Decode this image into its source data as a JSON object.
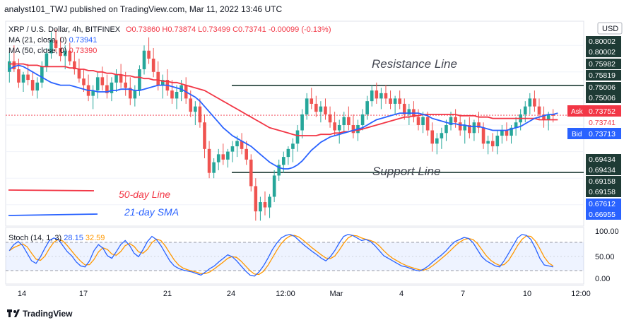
{
  "header": {
    "published_text": "analyst101_TWJ published on TradingView.com, Mar 11, 2022 13:46 UTC"
  },
  "symbol_bar": {
    "symbol": "XRP / U.S. Dollar, 4h, BITFINEX",
    "ohlc": "O0.73860 H0.73874 L0.73499 C0.73741 -0.00099 (-0.13%)"
  },
  "indicators": {
    "ma21": {
      "label": "MA (21, close, 0)",
      "value": "0.73941",
      "color": "#2962ff"
    },
    "ma50": {
      "label": "MA (50, close, 0)",
      "value": "0.73390",
      "color": "#f23645"
    }
  },
  "currency_badge": "USD",
  "annotations": {
    "resistance": "Resistance Line",
    "support": "Support Line",
    "legend_50": "50-day Line",
    "legend_21": "21-day SMA"
  },
  "price_axis_labels": [
    "0.80002",
    "0.80002",
    "0.75982",
    "0.75819",
    "0.75006",
    "0.75006",
    "0.73752",
    "0.73741",
    "0.73713",
    "0.69434",
    "0.69434",
    "0.69158",
    "0.69158",
    "0.67612",
    "0.66955"
  ],
  "price_badges": {
    "ask_label": "Ask",
    "ask_value": "0.73752",
    "ask_color": "#f23645",
    "last_value": "0.73741",
    "bid_label": "Bid",
    "bid_value": "0.73713",
    "bid_color": "#2962ff"
  },
  "stoch": {
    "label": "Stoch (14, 1, 3)",
    "k_value": "28.15",
    "d_value": "32.59",
    "k_color": "#2962ff",
    "d_color": "#ff9800",
    "axis_labels": [
      "100.00",
      "50.00",
      "0.00"
    ]
  },
  "time_axis": [
    "14",
    "17",
    "21",
    "24",
    "12:00",
    "Mar",
    "4",
    "7",
    "10",
    "12:00"
  ],
  "footer": {
    "logo_text": "TradingView"
  },
  "chart_data": {
    "type": "candlestick",
    "title": "XRP / U.S. Dollar, 4h, BITFINEX",
    "price_range": [
      0.655,
      0.805
    ],
    "resistance_level": 0.75982,
    "support_level": 0.69434,
    "candles": [
      [
        0.77,
        0.785,
        0.762,
        0.778
      ],
      [
        0.778,
        0.79,
        0.77,
        0.772
      ],
      [
        0.772,
        0.78,
        0.758,
        0.762
      ],
      [
        0.762,
        0.77,
        0.755,
        0.768
      ],
      [
        0.768,
        0.776,
        0.76,
        0.764
      ],
      [
        0.764,
        0.77,
        0.752,
        0.756
      ],
      [
        0.756,
        0.766,
        0.75,
        0.762
      ],
      [
        0.762,
        0.778,
        0.758,
        0.774
      ],
      [
        0.774,
        0.788,
        0.77,
        0.784
      ],
      [
        0.784,
        0.8,
        0.78,
        0.794
      ],
      [
        0.794,
        0.802,
        0.785,
        0.788
      ],
      [
        0.788,
        0.796,
        0.778,
        0.782
      ],
      [
        0.782,
        0.79,
        0.772,
        0.786
      ],
      [
        0.786,
        0.792,
        0.775,
        0.778
      ],
      [
        0.778,
        0.785,
        0.768,
        0.772
      ],
      [
        0.772,
        0.78,
        0.762,
        0.765
      ],
      [
        0.765,
        0.772,
        0.755,
        0.76
      ],
      [
        0.76,
        0.768,
        0.748,
        0.752
      ],
      [
        0.752,
        0.76,
        0.742,
        0.756
      ],
      [
        0.756,
        0.77,
        0.75,
        0.766
      ],
      [
        0.766,
        0.774,
        0.756,
        0.76
      ],
      [
        0.76,
        0.768,
        0.75,
        0.754
      ],
      [
        0.754,
        0.766,
        0.748,
        0.762
      ],
      [
        0.762,
        0.772,
        0.755,
        0.768
      ],
      [
        0.768,
        0.776,
        0.758,
        0.762
      ],
      [
        0.762,
        0.77,
        0.752,
        0.758
      ],
      [
        0.758,
        0.766,
        0.745,
        0.75
      ],
      [
        0.75,
        0.76,
        0.744,
        0.756
      ],
      [
        0.756,
        0.775,
        0.752,
        0.772
      ],
      [
        0.772,
        0.79,
        0.768,
        0.786
      ],
      [
        0.786,
        0.796,
        0.776,
        0.78
      ],
      [
        0.78,
        0.788,
        0.766,
        0.77
      ],
      [
        0.77,
        0.778,
        0.756,
        0.76
      ],
      [
        0.76,
        0.768,
        0.75,
        0.764
      ],
      [
        0.764,
        0.772,
        0.752,
        0.756
      ],
      [
        0.756,
        0.764,
        0.746,
        0.75
      ],
      [
        0.75,
        0.76,
        0.742,
        0.755
      ],
      [
        0.755,
        0.764,
        0.748,
        0.76
      ],
      [
        0.76,
        0.766,
        0.746,
        0.75
      ],
      [
        0.75,
        0.756,
        0.736,
        0.74
      ],
      [
        0.74,
        0.748,
        0.73,
        0.744
      ],
      [
        0.744,
        0.75,
        0.728,
        0.732
      ],
      [
        0.732,
        0.738,
        0.705,
        0.712
      ],
      [
        0.712,
        0.718,
        0.69,
        0.694
      ],
      [
        0.694,
        0.705,
        0.69,
        0.702
      ],
      [
        0.702,
        0.712,
        0.696,
        0.708
      ],
      [
        0.708,
        0.716,
        0.7,
        0.704
      ],
      [
        0.704,
        0.712,
        0.698,
        0.71
      ],
      [
        0.71,
        0.718,
        0.702,
        0.714
      ],
      [
        0.714,
        0.722,
        0.706,
        0.718
      ],
      [
        0.718,
        0.724,
        0.708,
        0.712
      ],
      [
        0.712,
        0.718,
        0.7,
        0.704
      ],
      [
        0.704,
        0.708,
        0.68,
        0.684
      ],
      [
        0.684,
        0.69,
        0.658,
        0.665
      ],
      [
        0.665,
        0.676,
        0.658,
        0.672
      ],
      [
        0.672,
        0.68,
        0.662,
        0.668
      ],
      [
        0.668,
        0.678,
        0.66,
        0.676
      ],
      [
        0.676,
        0.696,
        0.672,
        0.692
      ],
      [
        0.692,
        0.704,
        0.688,
        0.7
      ],
      [
        0.7,
        0.71,
        0.694,
        0.706
      ],
      [
        0.706,
        0.714,
        0.7,
        0.712
      ],
      [
        0.712,
        0.72,
        0.702,
        0.716
      ],
      [
        0.716,
        0.73,
        0.71,
        0.726
      ],
      [
        0.726,
        0.742,
        0.72,
        0.738
      ],
      [
        0.738,
        0.754,
        0.734,
        0.75
      ],
      [
        0.75,
        0.758,
        0.742,
        0.746
      ],
      [
        0.746,
        0.752,
        0.736,
        0.74
      ],
      [
        0.74,
        0.748,
        0.732,
        0.744
      ],
      [
        0.744,
        0.75,
        0.734,
        0.738
      ],
      [
        0.738,
        0.744,
        0.728,
        0.732
      ],
      [
        0.732,
        0.74,
        0.722,
        0.726
      ],
      [
        0.726,
        0.734,
        0.716,
        0.73
      ],
      [
        0.73,
        0.74,
        0.724,
        0.736
      ],
      [
        0.736,
        0.744,
        0.726,
        0.73
      ],
      [
        0.73,
        0.738,
        0.72,
        0.724
      ],
      [
        0.724,
        0.734,
        0.718,
        0.73
      ],
      [
        0.73,
        0.742,
        0.726,
        0.738
      ],
      [
        0.738,
        0.752,
        0.734,
        0.748
      ],
      [
        0.748,
        0.76,
        0.744,
        0.756
      ],
      [
        0.756,
        0.762,
        0.746,
        0.75
      ],
      [
        0.75,
        0.758,
        0.742,
        0.754
      ],
      [
        0.754,
        0.76,
        0.746,
        0.75
      ],
      [
        0.75,
        0.756,
        0.742,
        0.746
      ],
      [
        0.746,
        0.752,
        0.738,
        0.75
      ],
      [
        0.75,
        0.756,
        0.742,
        0.746
      ],
      [
        0.746,
        0.75,
        0.734,
        0.738
      ],
      [
        0.738,
        0.746,
        0.73,
        0.742
      ],
      [
        0.742,
        0.748,
        0.732,
        0.736
      ],
      [
        0.736,
        0.742,
        0.726,
        0.73
      ],
      [
        0.73,
        0.74,
        0.724,
        0.736
      ],
      [
        0.736,
        0.74,
        0.722,
        0.726
      ],
      [
        0.726,
        0.732,
        0.71,
        0.716
      ],
      [
        0.716,
        0.724,
        0.708,
        0.72
      ],
      [
        0.72,
        0.728,
        0.712,
        0.724
      ],
      [
        0.724,
        0.734,
        0.718,
        0.73
      ],
      [
        0.73,
        0.74,
        0.726,
        0.736
      ],
      [
        0.736,
        0.742,
        0.728,
        0.732
      ],
      [
        0.732,
        0.738,
        0.722,
        0.726
      ],
      [
        0.726,
        0.734,
        0.716,
        0.73
      ],
      [
        0.73,
        0.736,
        0.72,
        0.724
      ],
      [
        0.724,
        0.734,
        0.718,
        0.732
      ],
      [
        0.732,
        0.74,
        0.724,
        0.728
      ],
      [
        0.728,
        0.732,
        0.712,
        0.716
      ],
      [
        0.716,
        0.722,
        0.708,
        0.718
      ],
      [
        0.718,
        0.724,
        0.71,
        0.714
      ],
      [
        0.714,
        0.726,
        0.708,
        0.722
      ],
      [
        0.722,
        0.73,
        0.716,
        0.726
      ],
      [
        0.726,
        0.732,
        0.718,
        0.722
      ],
      [
        0.722,
        0.73,
        0.716,
        0.728
      ],
      [
        0.728,
        0.736,
        0.722,
        0.732
      ],
      [
        0.732,
        0.742,
        0.726,
        0.738
      ],
      [
        0.738,
        0.748,
        0.732,
        0.744
      ],
      [
        0.744,
        0.754,
        0.738,
        0.75
      ],
      [
        0.75,
        0.756,
        0.74,
        0.744
      ],
      [
        0.744,
        0.75,
        0.734,
        0.738
      ],
      [
        0.738,
        0.744,
        0.728,
        0.734
      ],
      [
        0.734,
        0.74,
        0.726,
        0.738
      ],
      [
        0.738,
        0.742,
        0.732,
        0.737
      ]
    ],
    "ma21": [
      0.772,
      0.774,
      0.775,
      0.774,
      0.772,
      0.77,
      0.768,
      0.766,
      0.764,
      0.762,
      0.761,
      0.76,
      0.76,
      0.76,
      0.759,
      0.758,
      0.757,
      0.756,
      0.756,
      0.755,
      0.755,
      0.755,
      0.756,
      0.756,
      0.757,
      0.757,
      0.757,
      0.756,
      0.756,
      0.757,
      0.758,
      0.759,
      0.76,
      0.76,
      0.76,
      0.759,
      0.758,
      0.757,
      0.755,
      0.753,
      0.751,
      0.748,
      0.744,
      0.74,
      0.736,
      0.732,
      0.728,
      0.725,
      0.722,
      0.72,
      0.718,
      0.716,
      0.714,
      0.711,
      0.708,
      0.705,
      0.702,
      0.7,
      0.698,
      0.697,
      0.697,
      0.698,
      0.7,
      0.703,
      0.707,
      0.711,
      0.714,
      0.717,
      0.719,
      0.721,
      0.722,
      0.723,
      0.724,
      0.725,
      0.726,
      0.727,
      0.728,
      0.73,
      0.732,
      0.734,
      0.735,
      0.736,
      0.737,
      0.738,
      0.739,
      0.739,
      0.739,
      0.739,
      0.739,
      0.738,
      0.737,
      0.735,
      0.734,
      0.733,
      0.732,
      0.731,
      0.731,
      0.73,
      0.73,
      0.729,
      0.729,
      0.729,
      0.728,
      0.727,
      0.726,
      0.726,
      0.726,
      0.726,
      0.727,
      0.728,
      0.729,
      0.731,
      0.733,
      0.735,
      0.736,
      0.737,
      0.738,
      0.738,
      0.739
    ],
    "ma50": [
      0.776,
      0.776,
      0.776,
      0.776,
      0.775,
      0.775,
      0.775,
      0.774,
      0.774,
      0.774,
      0.774,
      0.774,
      0.774,
      0.773,
      0.773,
      0.772,
      0.772,
      0.771,
      0.771,
      0.77,
      0.77,
      0.769,
      0.769,
      0.768,
      0.768,
      0.767,
      0.767,
      0.766,
      0.766,
      0.765,
      0.765,
      0.764,
      0.764,
      0.763,
      0.763,
      0.762,
      0.762,
      0.761,
      0.76,
      0.759,
      0.758,
      0.757,
      0.756,
      0.754,
      0.752,
      0.75,
      0.748,
      0.746,
      0.744,
      0.742,
      0.74,
      0.738,
      0.736,
      0.734,
      0.732,
      0.73,
      0.728,
      0.727,
      0.726,
      0.725,
      0.724,
      0.723,
      0.722,
      0.722,
      0.722,
      0.722,
      0.722,
      0.723,
      0.723,
      0.723,
      0.724,
      0.724,
      0.725,
      0.725,
      0.726,
      0.726,
      0.727,
      0.728,
      0.729,
      0.73,
      0.731,
      0.732,
      0.733,
      0.734,
      0.735,
      0.736,
      0.736,
      0.737,
      0.737,
      0.738,
      0.738,
      0.738,
      0.738,
      0.738,
      0.738,
      0.738,
      0.738,
      0.737,
      0.737,
      0.737,
      0.737,
      0.736,
      0.736,
      0.736,
      0.735,
      0.735,
      0.735,
      0.735,
      0.735,
      0.735,
      0.735,
      0.735,
      0.735,
      0.735,
      0.734,
      0.734,
      0.734,
      0.734,
      0.734
    ],
    "stoch_k": [
      60,
      72,
      78,
      70,
      55,
      40,
      35,
      48,
      65,
      80,
      85,
      82,
      70,
      58,
      50,
      38,
      30,
      28,
      40,
      60,
      72,
      65,
      50,
      45,
      58,
      72,
      80,
      70,
      55,
      48,
      62,
      78,
      88,
      82,
      70,
      55,
      40,
      30,
      25,
      22,
      20,
      18,
      15,
      12,
      18,
      25,
      30,
      38,
      45,
      52,
      48,
      40,
      30,
      20,
      12,
      10,
      18,
      30,
      45,
      62,
      75,
      85,
      90,
      92,
      88,
      80,
      72,
      65,
      58,
      52,
      45,
      40,
      48,
      60,
      75,
      88,
      92,
      90,
      85,
      80,
      82,
      78,
      70,
      60,
      50,
      45,
      40,
      35,
      30,
      28,
      25,
      22,
      20,
      24,
      30,
      38,
      45,
      52,
      60,
      70,
      78,
      82,
      86,
      84,
      76,
      62,
      48,
      40,
      35,
      30,
      28,
      40,
      55,
      70,
      85,
      92,
      90,
      82,
      65,
      45,
      32,
      30,
      28
    ]
  }
}
